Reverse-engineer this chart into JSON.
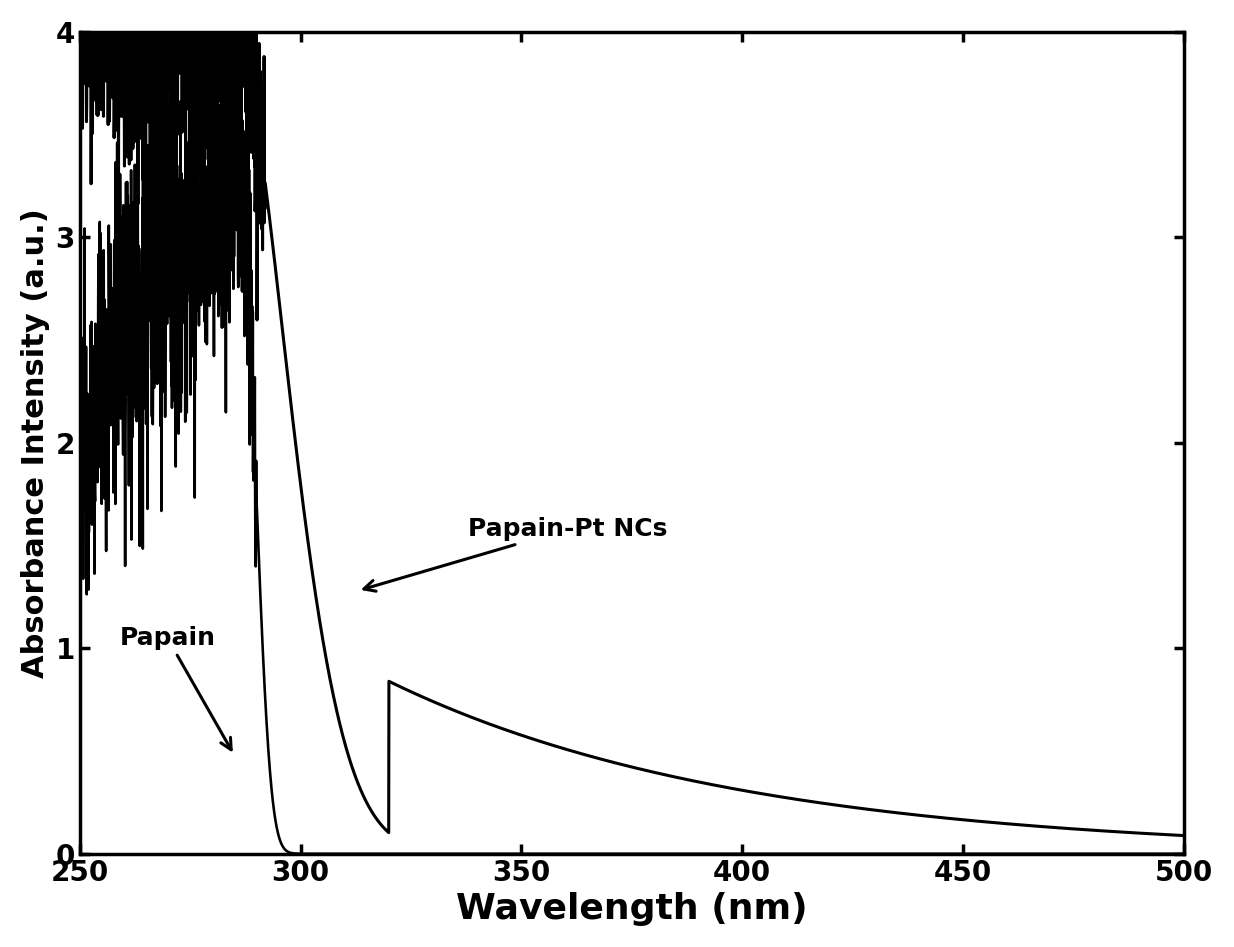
{
  "title": "",
  "xlabel": "Wavelength (nm)",
  "ylabel": "Absorbance Intensity (a.u.)",
  "xlim": [
    250,
    500
  ],
  "ylim": [
    0,
    4
  ],
  "xticks": [
    250,
    300,
    350,
    400,
    450,
    500
  ],
  "yticks": [
    0,
    1,
    2,
    3,
    4
  ],
  "line_color": "#000000",
  "background_color": "#ffffff",
  "xlabel_fontsize": 26,
  "ylabel_fontsize": 22,
  "tick_fontsize": 20,
  "annotation_fontsize": 18,
  "linewidth": 2.2
}
